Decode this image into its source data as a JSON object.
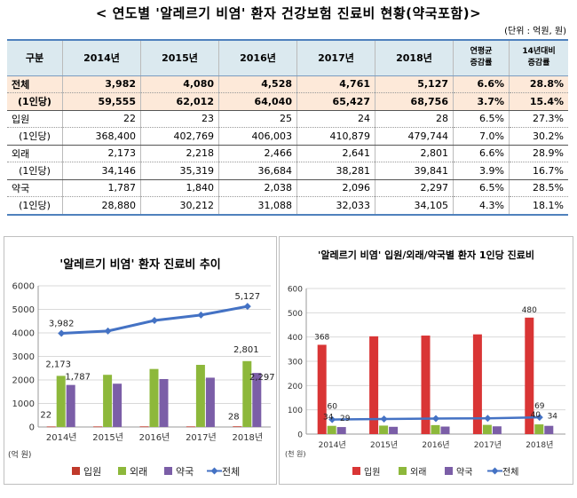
{
  "title": "< 연도별 '알레르기 비염' 환자 건강보험 진료비 현황(약국포함)>",
  "unit_note": "(단위 : 억원, 원)",
  "table": {
    "headers": [
      "구분",
      "2014년",
      "2015년",
      "2016년",
      "2017년",
      "2018년",
      "연평균\n증감률",
      "14년대비\n증감률"
    ],
    "rows": [
      {
        "label": "전체",
        "cells": [
          "3,982",
          "4,080",
          "4,528",
          "4,761",
          "5,127",
          "6.6%",
          "28.8%"
        ]
      },
      {
        "label": "(1인당)",
        "cells": [
          "59,555",
          "62,012",
          "64,040",
          "65,427",
          "68,756",
          "3.7%",
          "15.4%"
        ]
      },
      {
        "label": "입원",
        "cells": [
          "22",
          "23",
          "25",
          "24",
          "28",
          "6.5%",
          "27.3%"
        ]
      },
      {
        "label": "(1인당)",
        "cells": [
          "368,400",
          "402,769",
          "406,003",
          "410,879",
          "479,744",
          "7.0%",
          "30.2%"
        ]
      },
      {
        "label": "외래",
        "cells": [
          "2,173",
          "2,218",
          "2,466",
          "2,641",
          "2,801",
          "6.6%",
          "28.9%"
        ]
      },
      {
        "label": "(1인당)",
        "cells": [
          "34,146",
          "35,319",
          "36,684",
          "38,281",
          "39,841",
          "3.9%",
          "16.7%"
        ]
      },
      {
        "label": "약국",
        "cells": [
          "1,787",
          "1,840",
          "2,038",
          "2,096",
          "2,297",
          "6.5%",
          "28.5%"
        ]
      },
      {
        "label": "(1인당)",
        "cells": [
          "28,880",
          "30,212",
          "31,088",
          "32,033",
          "34,105",
          "4.3%",
          "18.1%"
        ]
      }
    ]
  },
  "chart_data": [
    {
      "type": "bar",
      "title": "'알레르기 비염' 환자 진료비 추이",
      "categories": [
        "2014년",
        "2015년",
        "2016년",
        "2017년",
        "2018년"
      ],
      "ylabel": "(억 원)",
      "ylim": [
        0,
        6000
      ],
      "yticks": [
        0,
        1000,
        2000,
        3000,
        4000,
        5000,
        6000
      ],
      "series": [
        {
          "name": "입원",
          "kind": "bar",
          "color": "#c0392b",
          "values": [
            22,
            23,
            25,
            24,
            28
          ]
        },
        {
          "name": "외래",
          "kind": "bar",
          "color": "#8db83b",
          "values": [
            2173,
            2218,
            2466,
            2641,
            2801
          ]
        },
        {
          "name": "약국",
          "kind": "bar",
          "color": "#7b5ea7",
          "values": [
            1787,
            1840,
            2038,
            2096,
            2297
          ]
        },
        {
          "name": "전체",
          "kind": "line",
          "color": "#4472c4",
          "values": [
            3982,
            4080,
            4528,
            4761,
            5127
          ]
        }
      ],
      "data_labels": [
        {
          "series": "전체",
          "index": 0,
          "text": "3,982"
        },
        {
          "series": "전체",
          "index": 4,
          "text": "5,127"
        },
        {
          "series": "입원",
          "index": 0,
          "text": "22"
        },
        {
          "series": "입원",
          "index": 4,
          "text": "28"
        },
        {
          "series": "외래",
          "index": 0,
          "text": "2,173"
        },
        {
          "series": "외래",
          "index": 4,
          "text": "2,801"
        },
        {
          "series": "약국",
          "index": 0,
          "text": "1,787"
        },
        {
          "series": "약국",
          "index": 4,
          "text": "2,297"
        }
      ]
    },
    {
      "type": "bar",
      "title": "'알레르기 비염' 입원/외래/약국별 환자 1인당 진료비",
      "categories": [
        "2014년",
        "2015년",
        "2016년",
        "2017년",
        "2018년"
      ],
      "ylabel": "(천 원)",
      "ylim": [
        0,
        600
      ],
      "yticks": [
        0,
        100,
        200,
        300,
        400,
        500,
        600
      ],
      "series": [
        {
          "name": "입원",
          "kind": "bar",
          "color": "#d93535",
          "values": [
            368,
            403,
            406,
            411,
            480
          ]
        },
        {
          "name": "외래",
          "kind": "bar",
          "color": "#8db83b",
          "values": [
            34,
            35,
            37,
            38,
            40
          ]
        },
        {
          "name": "약국",
          "kind": "bar",
          "color": "#7b5ea7",
          "values": [
            29,
            30,
            31,
            32,
            34
          ]
        },
        {
          "name": "전체",
          "kind": "line",
          "color": "#4472c4",
          "values": [
            60,
            62,
            64,
            65,
            69
          ]
        }
      ],
      "data_labels": [
        {
          "series": "입원",
          "index": 0,
          "text": "368"
        },
        {
          "series": "입원",
          "index": 4,
          "text": "480"
        },
        {
          "series": "전체",
          "index": 0,
          "text": "60"
        },
        {
          "series": "전체",
          "index": 4,
          "text": "69"
        },
        {
          "series": "외래",
          "index": 0,
          "text": "34"
        },
        {
          "series": "약국",
          "index": 0,
          "text": "29"
        },
        {
          "series": "외래",
          "index": 4,
          "text": "40"
        },
        {
          "series": "약국",
          "index": 4,
          "text": "34"
        }
      ]
    }
  ]
}
